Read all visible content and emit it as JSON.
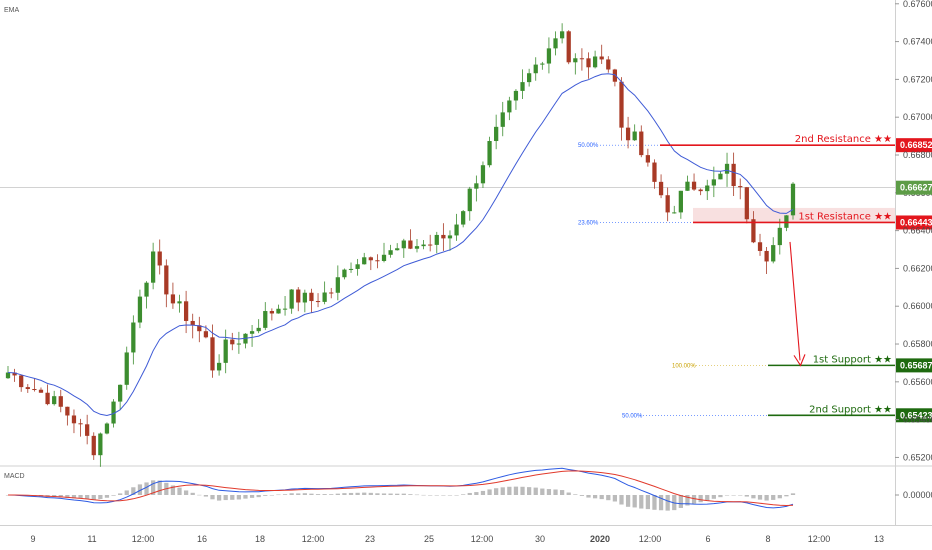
{
  "chart_data": {
    "type": "candlestick",
    "indicator_main_label": "EMA",
    "indicator_sub_label": "MACD",
    "price_axis_ticks": [
      0.676,
      0.674,
      0.672,
      0.67,
      0.668,
      0.666,
      0.664,
      0.662,
      0.66,
      0.658,
      0.656,
      0.654,
      0.652
    ],
    "price_range": [
      0.6516,
      0.6762
    ],
    "macd_tick": "0.00000",
    "time_axis_labels": [
      "9",
      "11",
      "12:00",
      "16",
      "18",
      "12:00",
      "23",
      "25",
      "12:00",
      "30",
      "2020",
      "12:00",
      "6",
      "8",
      "12:00",
      "13"
    ],
    "current_price": 0.66627,
    "current_price_label": "0.66627",
    "path_points": [
      [
        0,
        0.6565
      ],
      [
        6,
        0.6552
      ],
      [
        10,
        0.654
      ],
      [
        13,
        0.6525
      ],
      [
        16,
        0.6548
      ],
      [
        18,
        0.6575
      ],
      [
        20,
        0.6608
      ],
      [
        22,
        0.6625
      ],
      [
        25,
        0.6602
      ],
      [
        27,
        0.6595
      ],
      [
        30,
        0.6582
      ],
      [
        31,
        0.6568
      ],
      [
        33,
        0.6578
      ],
      [
        36,
        0.6585
      ],
      [
        39,
        0.6595
      ],
      [
        43,
        0.6605
      ],
      [
        46,
        0.6603
      ],
      [
        49,
        0.6608
      ],
      [
        52,
        0.6623
      ],
      [
        55,
        0.6628
      ],
      [
        58,
        0.6628
      ],
      [
        61,
        0.6632
      ],
      [
        64,
        0.6633
      ],
      [
        67,
        0.6638
      ],
      [
        70,
        0.666
      ],
      [
        73,
        0.6685
      ],
      [
        76,
        0.6705
      ],
      [
        79,
        0.6722
      ],
      [
        82,
        0.6738
      ],
      [
        84,
        0.6748
      ],
      [
        85,
        0.673
      ],
      [
        89,
        0.6728
      ],
      [
        90,
        0.6735
      ],
      [
        92,
        0.6718
      ],
      [
        93,
        0.6695
      ],
      [
        95,
        0.6688
      ],
      [
        98,
        0.6665
      ],
      [
        101,
        0.6647
      ],
      [
        103,
        0.6668
      ],
      [
        106,
        0.6662
      ],
      [
        109,
        0.6672
      ],
      [
        111,
        0.666
      ],
      [
        113,
        0.6638
      ],
      [
        115,
        0.6628
      ],
      [
        116,
        0.6632
      ],
      [
        118,
        0.6645
      ],
      [
        119,
        0.6668
      ]
    ],
    "bar_count": 120,
    "levels": [
      {
        "name": "2nd Resistance ★★",
        "value": 0.66852,
        "tag": "0.66852",
        "color": "#e3161d",
        "fib": "50.00%",
        "fib_color": "#2962ff"
      },
      {
        "name": "1st Resistance ★★",
        "value": 0.66443,
        "tag": "0.66443",
        "color": "#e3161d",
        "fib": "23.60%",
        "fib_color": "#2962ff"
      },
      {
        "name": "1st Support ★★",
        "value": 0.65687,
        "tag": "0.65687",
        "color": "#1e6a0f",
        "fib": "100.00%",
        "fib_color": "#c9a100"
      },
      {
        "name": "2nd Support ★★",
        "value": 0.65423,
        "tag": "0.65423",
        "color": "#1e6a0f",
        "fib": "50.00%",
        "fib_color": "#2962ff"
      }
    ],
    "resistance_zone": [
      0.66443,
      0.6652
    ],
    "forecast_arrow": {
      "from": [
        0.6634
      ],
      "to": [
        0.65687
      ]
    },
    "colors": {
      "up": "#3c8d2f",
      "down": "#a83a26",
      "ema": "#3f5bd6",
      "macd_line": "#2d5be3",
      "signal_line": "#e13a2c",
      "hist": "#9e9e9e",
      "current_tag": "#5d9c47"
    }
  }
}
